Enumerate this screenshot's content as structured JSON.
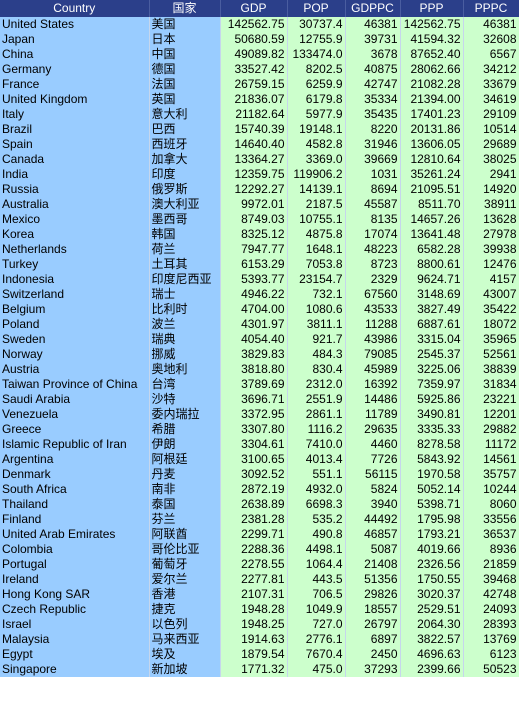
{
  "headers": [
    "Country",
    "国家",
    "GDP",
    "POP",
    "GDPPC",
    "PPP",
    "PPPC"
  ],
  "rows": [
    [
      "United States",
      "美国",
      "142562.75",
      "30737.4",
      "46381",
      "142562.75",
      "46381"
    ],
    [
      "Japan",
      "日本",
      "50680.59",
      "12755.9",
      "39731",
      "41594.32",
      "32608"
    ],
    [
      "China",
      "中国",
      "49089.82",
      "133474.0",
      "3678",
      "87652.40",
      "6567"
    ],
    [
      "Germany",
      "德国",
      "33527.42",
      "8202.5",
      "40875",
      "28062.66",
      "34212"
    ],
    [
      "France",
      "法国",
      "26759.15",
      "6259.9",
      "42747",
      "21082.28",
      "33679"
    ],
    [
      "United Kingdom",
      "英国",
      "21836.07",
      "6179.8",
      "35334",
      "21394.00",
      "34619"
    ],
    [
      "Italy",
      "意大利",
      "21182.64",
      "5977.9",
      "35435",
      "17401.23",
      "29109"
    ],
    [
      "Brazil",
      "巴西",
      "15740.39",
      "19148.1",
      "8220",
      "20131.86",
      "10514"
    ],
    [
      "Spain",
      "西班牙",
      "14640.40",
      "4582.8",
      "31946",
      "13606.05",
      "29689"
    ],
    [
      "Canada",
      "加拿大",
      "13364.27",
      "3369.0",
      "39669",
      "12810.64",
      "38025"
    ],
    [
      "India",
      "印度",
      "12359.75",
      "119906.2",
      "1031",
      "35261.24",
      "2941"
    ],
    [
      "Russia",
      "俄罗斯",
      "12292.27",
      "14139.1",
      "8694",
      "21095.51",
      "14920"
    ],
    [
      "Australia",
      "澳大利亚",
      "9972.01",
      "2187.5",
      "45587",
      "8511.70",
      "38911"
    ],
    [
      "Mexico",
      "墨西哥",
      "8749.03",
      "10755.1",
      "8135",
      "14657.26",
      "13628"
    ],
    [
      "Korea",
      "韩国",
      "8325.12",
      "4875.8",
      "17074",
      "13641.48",
      "27978"
    ],
    [
      "Netherlands",
      "荷兰",
      "7947.77",
      "1648.1",
      "48223",
      "6582.28",
      "39938"
    ],
    [
      "Turkey",
      "土耳其",
      "6153.29",
      "7053.8",
      "8723",
      "8800.61",
      "12476"
    ],
    [
      "Indonesia",
      "印度尼西亚",
      "5393.77",
      "23154.7",
      "2329",
      "9624.71",
      "4157"
    ],
    [
      "Switzerland",
      "瑞士",
      "4946.22",
      "732.1",
      "67560",
      "3148.69",
      "43007"
    ],
    [
      "Belgium",
      "比利时",
      "4704.00",
      "1080.6",
      "43533",
      "3827.49",
      "35422"
    ],
    [
      "Poland",
      "波兰",
      "4301.97",
      "3811.1",
      "11288",
      "6887.61",
      "18072"
    ],
    [
      "Sweden",
      "瑞典",
      "4054.40",
      "921.7",
      "43986",
      "3315.04",
      "35965"
    ],
    [
      "Norway",
      "挪威",
      "3829.83",
      "484.3",
      "79085",
      "2545.37",
      "52561"
    ],
    [
      "Austria",
      "奥地利",
      "3818.80",
      "830.4",
      "45989",
      "3225.06",
      "38839"
    ],
    [
      "Taiwan Province of China",
      "台湾",
      "3789.69",
      "2312.0",
      "16392",
      "7359.97",
      "31834"
    ],
    [
      "Saudi Arabia",
      "沙特",
      "3696.71",
      "2551.9",
      "14486",
      "5925.86",
      "23221"
    ],
    [
      "Venezuela",
      "委内瑞拉",
      "3372.95",
      "2861.1",
      "11789",
      "3490.81",
      "12201"
    ],
    [
      "Greece",
      "希腊",
      "3307.80",
      "1116.2",
      "29635",
      "3335.33",
      "29882"
    ],
    [
      "Islamic Republic of Iran",
      "伊朗",
      "3304.61",
      "7410.0",
      "4460",
      "8278.58",
      "11172"
    ],
    [
      "Argentina",
      "阿根廷",
      "3100.65",
      "4013.4",
      "7726",
      "5843.92",
      "14561"
    ],
    [
      "Denmark",
      "丹麦",
      "3092.52",
      "551.1",
      "56115",
      "1970.58",
      "35757"
    ],
    [
      "South Africa",
      "南非",
      "2872.19",
      "4932.0",
      "5824",
      "5052.14",
      "10244"
    ],
    [
      "Thailand",
      "泰国",
      "2638.89",
      "6698.3",
      "3940",
      "5398.71",
      "8060"
    ],
    [
      "Finland",
      "芬兰",
      "2381.28",
      "535.2",
      "44492",
      "1795.98",
      "33556"
    ],
    [
      "United Arab Emirates",
      "阿联酋",
      "2299.71",
      "490.8",
      "46857",
      "1793.21",
      "36537"
    ],
    [
      "Colombia",
      "哥伦比亚",
      "2288.36",
      "4498.1",
      "5087",
      "4019.66",
      "8936"
    ],
    [
      "Portugal",
      "葡萄牙",
      "2278.55",
      "1064.4",
      "21408",
      "2326.56",
      "21859"
    ],
    [
      "Ireland",
      "爱尔兰",
      "2277.81",
      "443.5",
      "51356",
      "1750.55",
      "39468"
    ],
    [
      "Hong Kong SAR",
      "香港",
      "2107.31",
      "706.5",
      "29826",
      "3020.37",
      "42748"
    ],
    [
      "Czech Republic",
      "捷克",
      "1948.28",
      "1049.9",
      "18557",
      "2529.51",
      "24093"
    ],
    [
      "Israel",
      "以色列",
      "1948.25",
      "727.0",
      "26797",
      "2064.30",
      "28393"
    ],
    [
      "Malaysia",
      "马来西亚",
      "1914.63",
      "2776.1",
      "6897",
      "3822.57",
      "13769"
    ],
    [
      "Egypt",
      "埃及",
      "1879.54",
      "7670.4",
      "2450",
      "4696.63",
      "6123"
    ],
    [
      "Singapore",
      "新加坡",
      "1771.32",
      "475.0",
      "37293",
      "2399.66",
      "50523"
    ]
  ],
  "colors": {
    "header_bg": "#2b3f8a",
    "name_bg": "#99ccff",
    "number_bg": "#ccffcc"
  }
}
